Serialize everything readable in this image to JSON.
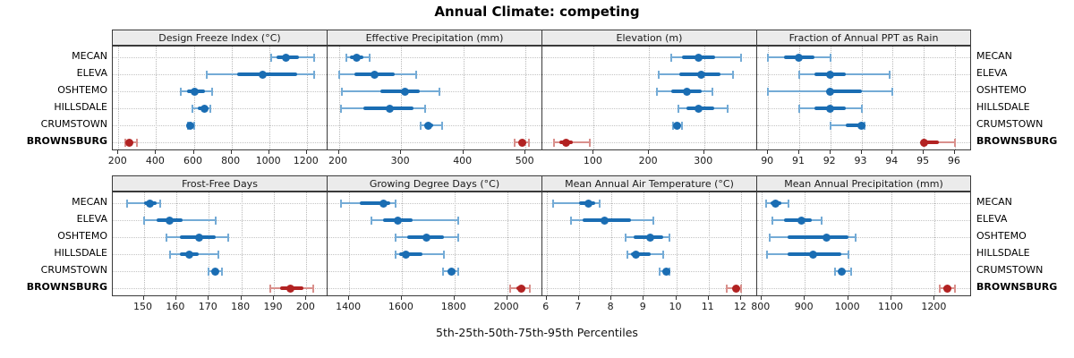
{
  "title": "Annual Climate: competing",
  "caption": "5th-25th-50th-75th-95th Percentiles",
  "sites": [
    "MECAN",
    "ELEVA",
    "OSHTEMO",
    "HILLSDALE",
    "CRUMSTOWN",
    "BROWNSBURG"
  ],
  "highlight_site": "BROWNSBURG",
  "percentile_labels": [
    "p5",
    "p25",
    "p50",
    "p75",
    "p95"
  ],
  "colors": {
    "series": "#1a6db3",
    "series_light": "#74abd6",
    "highlight": "#b22222",
    "highlight_light": "#d9908c",
    "strip_bg": "#ebebeb",
    "grid": "#bbbbbb",
    "border": "#3a3a3a"
  },
  "chart_data": [
    {
      "type": "scatter",
      "title": "Design Freeze Index (°C)",
      "xlim": [
        170,
        1310
      ],
      "ticks": [
        200,
        400,
        600,
        800,
        1000,
        1200
      ],
      "rows": [
        {
          "site": "MECAN",
          "values": [
            1010,
            1040,
            1090,
            1160,
            1240
          ]
        },
        {
          "site": "ELEVA",
          "values": [
            670,
            830,
            965,
            1150,
            1240
          ]
        },
        {
          "site": "OSHTEMO",
          "values": [
            530,
            565,
            605,
            660,
            695
          ]
        },
        {
          "site": "HILLSDALE",
          "values": [
            595,
            620,
            655,
            675,
            690
          ]
        },
        {
          "site": "CRUMSTOWN",
          "values": [
            570,
            576,
            582,
            590,
            602
          ]
        },
        {
          "site": "BROWNSBURG",
          "values": [
            235,
            245,
            258,
            270,
            298
          ]
        }
      ]
    },
    {
      "type": "scatter",
      "title": "Effective Precipitation (mm)",
      "xlim": [
        182,
        527
      ],
      "ticks": [
        200,
        300,
        400,
        500
      ],
      "rows": [
        {
          "site": "MECAN",
          "values": [
            212,
            218,
            229,
            240,
            249
          ]
        },
        {
          "site": "ELEVA",
          "values": [
            201,
            225,
            258,
            290,
            324
          ]
        },
        {
          "site": "OSHTEMO",
          "values": [
            205,
            267,
            306,
            330,
            362
          ]
        },
        {
          "site": "HILLSDALE",
          "values": [
            204,
            240,
            282,
            320,
            338
          ]
        },
        {
          "site": "CRUMSTOWN",
          "values": [
            331,
            337,
            343,
            351,
            366
          ]
        },
        {
          "site": "BROWNSBURG",
          "values": [
            483,
            490,
            495,
            500,
            505
          ]
        }
      ]
    },
    {
      "type": "scatter",
      "title": "Elevation (m)",
      "xlim": [
        7,
        396
      ],
      "ticks": [
        100,
        200,
        300
      ],
      "rows": [
        {
          "site": "MECAN",
          "values": [
            240,
            260,
            290,
            320,
            367
          ]
        },
        {
          "site": "ELEVA",
          "values": [
            218,
            255,
            294,
            330,
            352
          ]
        },
        {
          "site": "OSHTEMO",
          "values": [
            215,
            240,
            268,
            295,
            315
          ]
        },
        {
          "site": "HILLSDALE",
          "values": [
            254,
            268,
            290,
            318,
            343
          ]
        },
        {
          "site": "CRUMSTOWN",
          "values": [
            243,
            247,
            251,
            255,
            260
          ]
        },
        {
          "site": "BROWNSBURG",
          "values": [
            28,
            38,
            50,
            62,
            93
          ]
        }
      ]
    },
    {
      "type": "scatter",
      "title": "Fraction of Annual PPT as Rain",
      "xlim": [
        89.65,
        96.55
      ],
      "ticks": [
        90,
        91,
        92,
        93,
        94,
        95,
        96
      ],
      "rows": [
        {
          "site": "MECAN",
          "values": [
            90,
            90.5,
            91,
            91.5,
            92
          ]
        },
        {
          "site": "ELEVA",
          "values": [
            91,
            91.5,
            92,
            92.5,
            93.9
          ]
        },
        {
          "site": "OSHTEMO",
          "values": [
            90,
            92,
            92,
            93,
            94
          ]
        },
        {
          "site": "HILLSDALE",
          "values": [
            91,
            91.5,
            92,
            92.5,
            93
          ]
        },
        {
          "site": "CRUMSTOWN",
          "values": [
            92,
            92.5,
            93,
            93,
            93.1
          ]
        },
        {
          "site": "BROWNSBURG",
          "values": [
            95,
            95,
            95,
            95.5,
            96
          ]
        }
      ]
    },
    {
      "type": "scatter",
      "title": "Frost-Free Days",
      "xlim": [
        140.5,
        206.5
      ],
      "ticks": [
        150,
        160,
        170,
        180,
        190,
        200
      ],
      "rows": [
        {
          "site": "MECAN",
          "values": [
            145,
            150,
            152,
            154,
            155
          ]
        },
        {
          "site": "ELEVA",
          "values": [
            150,
            154,
            158,
            162,
            172
          ]
        },
        {
          "site": "OSHTEMO",
          "values": [
            157,
            161,
            167,
            172,
            176
          ]
        },
        {
          "site": "HILLSDALE",
          "values": [
            158,
            161,
            164,
            167,
            173
          ]
        },
        {
          "site": "CRUMSTOWN",
          "values": [
            170,
            171,
            172,
            173,
            174
          ]
        },
        {
          "site": "BROWNSBURG",
          "values": [
            189,
            192,
            195,
            199,
            202
          ]
        }
      ]
    },
    {
      "type": "scatter",
      "title": "Growing Degree Days (°C)",
      "xlim": [
        1318,
        2134
      ],
      "ticks": [
        1400,
        1600,
        1800,
        2000
      ],
      "rows": [
        {
          "site": "MECAN",
          "values": [
            1370,
            1440,
            1530,
            1555,
            1575
          ]
        },
        {
          "site": "ELEVA",
          "values": [
            1485,
            1530,
            1585,
            1640,
            1815
          ]
        },
        {
          "site": "OSHTEMO",
          "values": [
            1575,
            1620,
            1695,
            1760,
            1815
          ]
        },
        {
          "site": "HILLSDALE",
          "values": [
            1575,
            1590,
            1615,
            1680,
            1760
          ]
        },
        {
          "site": "CRUMSTOWN",
          "values": [
            1755,
            1775,
            1790,
            1805,
            1815
          ]
        },
        {
          "site": "BROWNSBURG",
          "values": [
            2010,
            2035,
            2055,
            2070,
            2085
          ]
        }
      ]
    },
    {
      "type": "scatter",
      "title": "Mean Annual Air Temperature (°C)",
      "xlim": [
        5.87,
        12.5
      ],
      "ticks": [
        6,
        7,
        8,
        9,
        10,
        11,
        12
      ],
      "rows": [
        {
          "site": "MECAN",
          "values": [
            6.2,
            7.0,
            7.3,
            7.5,
            7.65
          ]
        },
        {
          "site": "ELEVA",
          "values": [
            6.75,
            7.1,
            7.8,
            8.6,
            9.3
          ]
        },
        {
          "site": "OSHTEMO",
          "values": [
            8.45,
            8.7,
            9.2,
            9.6,
            9.8
          ]
        },
        {
          "site": "HILLSDALE",
          "values": [
            8.5,
            8.6,
            8.75,
            9.2,
            9.6
          ]
        },
        {
          "site": "CRUMSTOWN",
          "values": [
            9.5,
            9.6,
            9.7,
            9.75,
            9.8
          ]
        },
        {
          "site": "BROWNSBURG",
          "values": [
            11.55,
            11.75,
            11.85,
            11.95,
            12.0
          ]
        }
      ]
    },
    {
      "type": "scatter",
      "title": "Mean Annual Precipitation (mm)",
      "xlim": [
        790,
        1286
      ],
      "ticks": [
        800,
        900,
        1000,
        1100,
        1200
      ],
      "rows": [
        {
          "site": "MECAN",
          "values": [
            810,
            820,
            832,
            845,
            862
          ]
        },
        {
          "site": "ELEVA",
          "values": [
            826,
            852,
            893,
            917,
            938
          ]
        },
        {
          "site": "OSHTEMO",
          "values": [
            818,
            860,
            950,
            1000,
            1018
          ]
        },
        {
          "site": "HILLSDALE",
          "values": [
            812,
            860,
            920,
            985,
            1000
          ]
        },
        {
          "site": "CRUMSTOWN",
          "values": [
            970,
            978,
            986,
            993,
            1006
          ]
        },
        {
          "site": "BROWNSBURG",
          "values": [
            1212,
            1220,
            1229,
            1238,
            1247
          ]
        }
      ]
    }
  ]
}
